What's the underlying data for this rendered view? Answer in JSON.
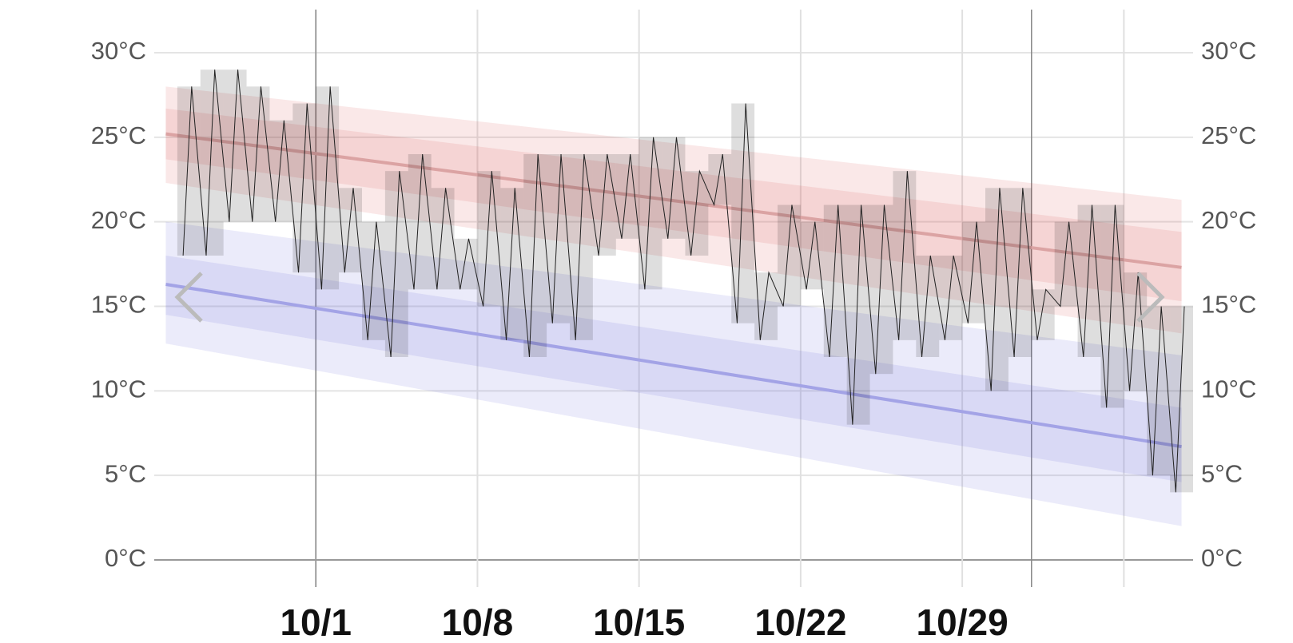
{
  "chart_data": {
    "type": "temperature-range",
    "xlim": [
      -6,
      39
    ],
    "xticks": [
      {
        "value": 1,
        "label": "10/1"
      },
      {
        "value": 8,
        "label": "10/8"
      },
      {
        "value": 15,
        "label": "10/15"
      },
      {
        "value": 22,
        "label": "10/22"
      },
      {
        "value": 29,
        "label": "10/29"
      },
      {
        "value": 36,
        "label": null
      }
    ],
    "month_lines": [
      1,
      32
    ],
    "ylim": [
      0,
      30
    ],
    "yticks": [
      {
        "value": 0,
        "label": "0°C"
      },
      {
        "value": 5,
        "label": "5°C"
      },
      {
        "value": 10,
        "label": "10°C"
      },
      {
        "value": 15,
        "label": "15°C"
      },
      {
        "value": 20,
        "label": "20°C"
      },
      {
        "value": 25,
        "label": "25°C"
      },
      {
        "value": 30,
        "label": "30°C"
      }
    ],
    "grid": true,
    "days": [
      -5,
      -4,
      -3,
      -2,
      -1,
      0,
      1,
      2,
      3,
      4,
      5,
      6,
      7,
      8,
      9,
      10,
      11,
      12,
      13,
      14,
      15,
      16,
      17,
      18,
      19,
      20,
      21,
      22,
      23,
      24,
      25,
      26,
      27,
      28,
      29,
      30,
      31,
      32,
      33,
      34,
      35,
      36,
      37,
      38
    ],
    "highs": [
      28,
      29,
      29,
      28,
      26,
      27,
      28,
      22,
      20,
      23,
      24,
      22,
      19,
      23,
      22,
      24,
      24,
      24,
      24,
      24,
      25,
      25,
      23,
      24,
      27,
      17,
      21,
      20,
      21,
      21,
      21,
      23,
      18,
      18,
      20,
      22,
      22,
      16,
      20,
      21,
      21,
      17,
      15,
      15
    ],
    "lows": [
      18,
      18,
      20,
      20,
      20,
      17,
      16,
      17,
      13,
      12,
      16,
      16,
      16,
      15,
      13,
      12,
      14,
      13,
      18,
      19,
      16,
      19,
      18,
      21,
      14,
      13,
      15,
      16,
      12,
      8,
      11,
      13,
      12,
      13,
      14,
      10,
      12,
      13,
      15,
      12,
      9,
      10,
      5,
      4
    ],
    "box_color": "rgba(0,0,0,0.13)",
    "line_color": "#222",
    "normals": [
      {
        "color": "#dc5050",
        "line_color": "#dba3a3",
        "x": [
          -5.5,
          38.5
        ],
        "mean": [
          25.2,
          17.3
        ],
        "inner_low": [
          23.7,
          15.3
        ],
        "inner_high": [
          26.7,
          19.4
        ],
        "outer_low": [
          22.3,
          13.4
        ],
        "outer_high": [
          28,
          21.3
        ]
      },
      {
        "color": "#6464dc",
        "line_color": "#a3a3e6",
        "x": [
          -5.5,
          38.5
        ],
        "mean": [
          16.3,
          6.7
        ],
        "inner_low": [
          14.5,
          4.6
        ],
        "inner_high": [
          18,
          9
        ],
        "outer_low": [
          12.8,
          2
        ],
        "outer_high": [
          20,
          12.1
        ]
      }
    ]
  }
}
